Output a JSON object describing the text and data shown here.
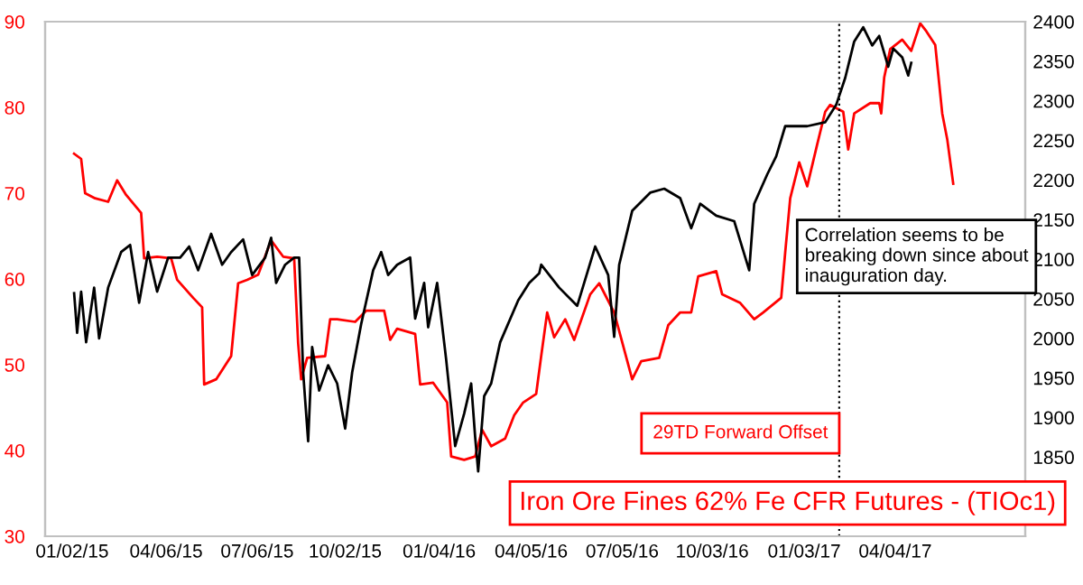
{
  "chart_data": {
    "type": "line",
    "title": "Iron Ore Fines 62% Fe CFR Futures - (TIOc1)",
    "annotations": [
      "Correlation seems to be breaking down since about inauguration day.",
      "29TD Forward Offset"
    ],
    "xlim": [
      "2014-12-06",
      "2017-08-12"
    ],
    "xticks": [
      {
        "value": "2015-01-02",
        "label": "01/02/15"
      },
      {
        "value": "2015-04-06",
        "label": "04/06/15"
      },
      {
        "value": "2015-07-06",
        "label": "07/06/15"
      },
      {
        "value": "2015-10-02",
        "label": "10/02/15"
      },
      {
        "value": "2016-01-04",
        "label": "01/04/16"
      },
      {
        "value": "2016-04-05",
        "label": "04/05/16"
      },
      {
        "value": "2016-07-05",
        "label": "07/05/16"
      },
      {
        "value": "2016-10-03",
        "label": "10/03/16"
      },
      {
        "value": "2017-01-03",
        "label": "01/03/17"
      },
      {
        "value": "2017-04-04",
        "label": "04/04/17"
      }
    ],
    "ylim": [
      30,
      90
    ],
    "yticks": [
      30,
      40,
      50,
      60,
      70,
      80,
      90
    ],
    "y2lim": [
      1750,
      2400
    ],
    "y2ticks": [
      1850,
      1900,
      1950,
      2000,
      2050,
      2100,
      2150,
      2200,
      2250,
      2300,
      2350,
      2400
    ],
    "grid": false,
    "legend": false,
    "ref_lines": [
      {
        "axis": "x",
        "value": "2017-02-07",
        "color": "#000000",
        "line_style": "dotted"
      }
    ],
    "series": [
      {
        "color": "#ff0000",
        "axis": "y",
        "x": [
          "2015-01-04",
          "2015-01-11",
          "2015-01-15",
          "2015-01-25",
          "2015-02-07",
          "2015-02-16",
          "2015-02-25",
          "2015-03-12",
          "2015-03-15",
          "2015-03-28",
          "2015-04-11",
          "2015-04-17",
          "2015-05-03",
          "2015-05-12",
          "2015-05-14",
          "2015-05-26",
          "2015-06-10",
          "2015-06-17",
          "2015-06-26",
          "2015-07-07",
          "2015-07-20",
          "2015-08-01",
          "2015-08-12",
          "2015-08-16",
          "2015-08-19",
          "2015-08-25",
          "2015-09-12",
          "2015-09-17",
          "2015-09-24",
          "2015-10-12",
          "2015-10-23",
          "2015-11-10",
          "2015-11-16",
          "2015-11-23",
          "2015-12-11",
          "2015-12-16",
          "2015-12-29",
          "2016-01-12",
          "2016-01-16",
          "2016-01-29",
          "2016-02-09",
          "2016-02-16",
          "2016-02-25",
          "2016-03-10",
          "2016-03-19",
          "2016-03-28",
          "2016-04-10",
          "2016-04-15",
          "2016-04-21",
          "2016-04-28",
          "2016-05-09",
          "2016-05-18",
          "2016-06-03",
          "2016-06-12",
          "2016-06-27",
          "2016-07-15",
          "2016-07-24",
          "2016-08-11",
          "2016-08-20",
          "2016-09-01",
          "2016-09-12",
          "2016-09-19",
          "2016-10-07",
          "2016-10-13",
          "2016-10-31",
          "2016-11-14",
          "2016-11-23",
          "2016-12-11",
          "2016-12-15",
          "2016-12-20",
          "2016-12-29",
          "2017-01-06",
          "2017-01-16",
          "2017-01-24",
          "2017-01-29",
          "2017-02-11",
          "2017-02-16",
          "2017-02-22",
          "2017-03-10",
          "2017-03-19",
          "2017-03-21",
          "2017-03-24",
          "2017-03-30",
          "2017-04-11",
          "2017-04-20",
          "2017-04-29",
          "2017-05-05",
          "2017-05-14",
          "2017-05-21",
          "2017-05-26",
          "2017-06-01"
        ],
        "values": [
          74.6,
          74,
          70,
          69.4,
          69,
          71.5,
          69.8,
          67.7,
          62.4,
          62.6,
          62.4,
          59.9,
          57.8,
          56.7,
          47.7,
          48.3,
          51,
          59.5,
          59.9,
          60.5,
          64.5,
          62.6,
          62.4,
          52.5,
          48.3,
          50.8,
          51,
          55.3,
          55.3,
          55,
          56.3,
          56.3,
          52.9,
          54.2,
          53.6,
          47.7,
          47.9,
          45.6,
          39.3,
          38.9,
          39.3,
          42.4,
          40.5,
          41.4,
          44.1,
          45.6,
          46.6,
          51,
          56.1,
          53.2,
          55.3,
          52.9,
          58.2,
          59.5,
          56.1,
          48.3,
          50.4,
          50.8,
          54.6,
          56.1,
          56.1,
          60.3,
          60.9,
          58.2,
          57.2,
          55.3,
          56.1,
          57.8,
          63.1,
          69.4,
          73.6,
          70.8,
          75.7,
          79.5,
          80.3,
          79.5,
          75.1,
          79.3,
          80.5,
          80.5,
          79.3,
          83.5,
          86.8,
          87.9,
          86.6,
          89.8,
          88.9,
          87.3,
          79.3,
          76.3,
          71.1
        ]
      },
      {
        "color": "#000000",
        "axis": "y2",
        "x": [
          "2015-01-04",
          "2015-01-07",
          "2015-01-11",
          "2015-01-16",
          "2015-01-24",
          "2015-01-29",
          "2015-02-07",
          "2015-02-20",
          "2015-03-01",
          "2015-03-10",
          "2015-03-19",
          "2015-03-28",
          "2015-04-08",
          "2015-04-20",
          "2015-04-29",
          "2015-05-08",
          "2015-05-21",
          "2015-06-01",
          "2015-06-10",
          "2015-06-22",
          "2015-07-01",
          "2015-07-14",
          "2015-07-20",
          "2015-07-25",
          "2015-08-03",
          "2015-08-12",
          "2015-08-17",
          "2015-08-21",
          "2015-08-26",
          "2015-08-30",
          "2015-09-06",
          "2015-09-15",
          "2015-09-24",
          "2015-10-02",
          "2015-10-09",
          "2015-10-18",
          "2015-10-30",
          "2015-11-07",
          "2015-11-14",
          "2015-11-23",
          "2015-12-06",
          "2015-12-11",
          "2015-12-20",
          "2015-12-24",
          "2016-01-02",
          "2016-01-11",
          "2016-01-20",
          "2016-01-29",
          "2016-02-05",
          "2016-02-09",
          "2016-02-12",
          "2016-02-18",
          "2016-02-25",
          "2016-03-05",
          "2016-03-23",
          "2016-04-03",
          "2016-04-13",
          "2016-04-15",
          "2016-05-03",
          "2016-05-21",
          "2016-06-08",
          "2016-06-21",
          "2016-06-27",
          "2016-07-02",
          "2016-07-15",
          "2016-08-02",
          "2016-08-16",
          "2016-09-01",
          "2016-09-12",
          "2016-09-21",
          "2016-10-07",
          "2016-10-25",
          "2016-11-09",
          "2016-11-14",
          "2016-11-27",
          "2016-12-06",
          "2016-12-15",
          "2017-01-06",
          "2017-01-24",
          "2017-02-04",
          "2017-02-13",
          "2017-02-22",
          "2017-03-03",
          "2017-03-12",
          "2017-03-19",
          "2017-03-28",
          "2017-04-02",
          "2017-04-11",
          "2017-04-17",
          "2017-04-20"
        ],
        "values": [
          2057,
          2007,
          2059,
          1995,
          2064,
          2000,
          2064,
          2109,
          2118,
          2045,
          2109,
          2059,
          2102,
          2102,
          2116,
          2086,
          2132,
          2093,
          2109,
          2125,
          2080,
          2102,
          2127,
          2070,
          2093,
          2102,
          2102,
          1957,
          1870,
          1989,
          1934,
          1966,
          1943,
          1886,
          1957,
          2018,
          2086,
          2109,
          2080,
          2093,
          2102,
          2025,
          2070,
          2014,
          2070,
          1973,
          1864,
          1905,
          1943,
          1875,
          1832,
          1927,
          1943,
          1995,
          2048,
          2070,
          2082,
          2093,
          2064,
          2041,
          2116,
          2080,
          2002,
          2093,
          2161,
          2184,
          2189,
          2177,
          2139,
          2170,
          2155,
          2148,
          2086,
          2170,
          2207,
          2230,
          2268,
          2268,
          2273,
          2295,
          2329,
          2375,
          2393,
          2370,
          2382,
          2343,
          2366,
          2355,
          2332,
          2348
        ]
      }
    ]
  }
}
